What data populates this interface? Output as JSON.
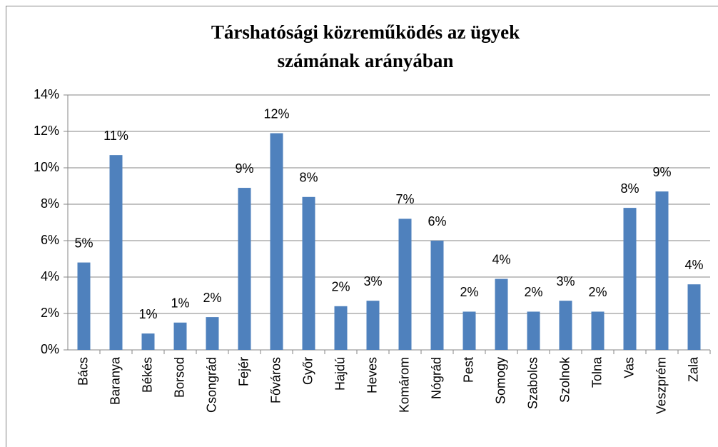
{
  "chart_data": {
    "type": "bar",
    "title": [
      "Társhatósági közreműködés az ügyek",
      "számának arányában"
    ],
    "categories": [
      "Bács",
      "Baranya",
      "Békés",
      "Borsod",
      "Csongrád",
      "Fejér",
      "Főváros",
      "Győr",
      "Hajdú",
      "Heves",
      "Komárom",
      "Nógrád",
      "Pest",
      "Somogy",
      "Szabolcs",
      "Szolnok",
      "Tolna",
      "Vas",
      "Veszprém",
      "Zala"
    ],
    "values": [
      4.8,
      10.7,
      0.9,
      1.5,
      1.8,
      8.9,
      11.9,
      8.4,
      2.4,
      2.7,
      7.2,
      6.0,
      2.1,
      3.9,
      2.1,
      2.7,
      2.1,
      7.8,
      8.7,
      3.6
    ],
    "value_labels": [
      "5%",
      "11%",
      "1%",
      "1%",
      "2%",
      "9%",
      "12%",
      "8%",
      "2%",
      "3%",
      "7%",
      "6%",
      "2%",
      "4%",
      "2%",
      "3%",
      "2%",
      "8%",
      "9%",
      "4%"
    ],
    "color": "#4f81bd",
    "ylim": [
      0,
      14
    ],
    "yticks": [
      {
        "value": 0,
        "label": "0%"
      },
      {
        "value": 2,
        "label": "2%"
      },
      {
        "value": 4,
        "label": "4%"
      },
      {
        "value": 6,
        "label": "6%"
      },
      {
        "value": 8,
        "label": "8%"
      },
      {
        "value": 10,
        "label": "10%"
      },
      {
        "value": 12,
        "label": "12%"
      },
      {
        "value": 14,
        "label": "14%"
      }
    ],
    "grid": true
  }
}
